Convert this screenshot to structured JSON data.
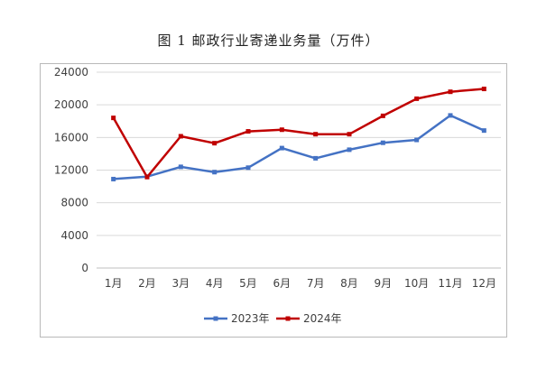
{
  "title": "图 1   邮政行业寄递业务量（万件）",
  "chart_data": {
    "type": "line",
    "title": "图 1   邮政行业寄递业务量（万件）",
    "categories": [
      "1月",
      "2月",
      "3月",
      "4月",
      "5月",
      "6月",
      "7月",
      "8月",
      "9月",
      "10月",
      "11月",
      "12月"
    ],
    "y_ticks": [
      "0",
      "4000",
      "8000",
      "12000",
      "16000",
      "20000",
      "24000"
    ],
    "ylim": [
      0,
      24000
    ],
    "grid": true,
    "legend_position": "bottom",
    "series": [
      {
        "name": "2023年",
        "color": "#4472c4",
        "values": [
          10900,
          11200,
          12400,
          11750,
          12300,
          14700,
          13450,
          14500,
          15350,
          15700,
          18700,
          16850
        ]
      },
      {
        "name": "2024年",
        "color": "#c00000",
        "values": [
          18400,
          11150,
          16150,
          15300,
          16750,
          16950,
          16400,
          16400,
          18650,
          20750,
          21600,
          21950
        ]
      }
    ]
  }
}
